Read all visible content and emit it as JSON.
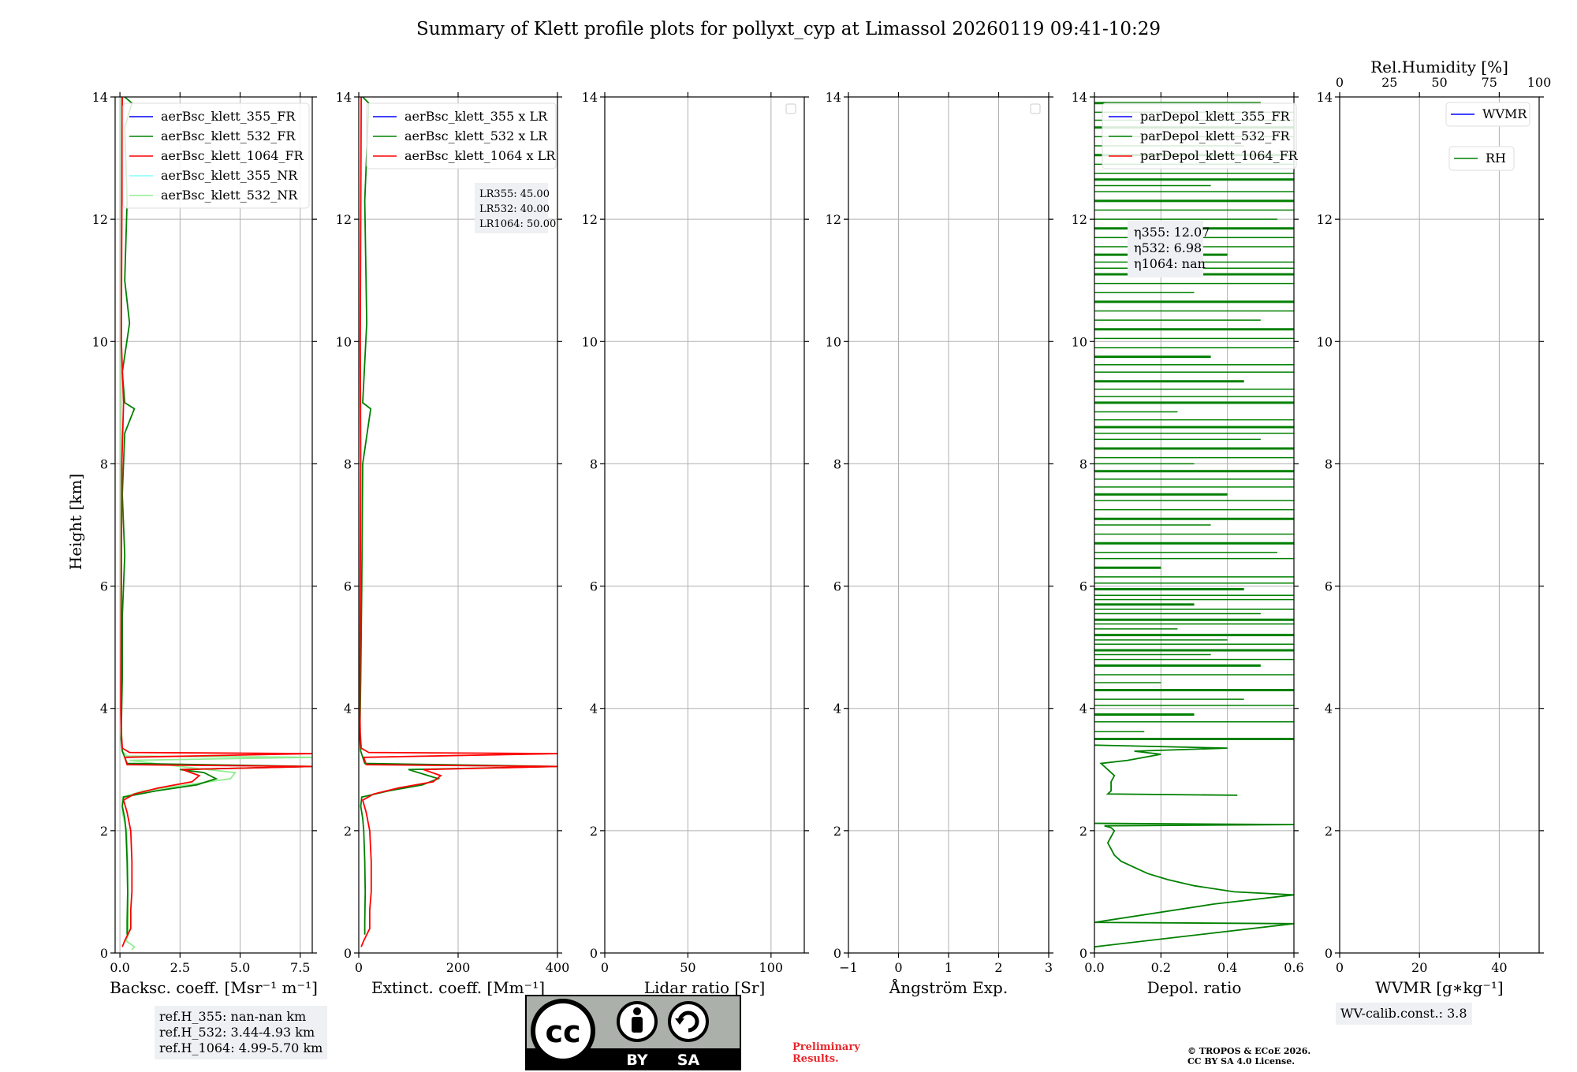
{
  "figure": {
    "title": "Summary of Klett profile plots for pollyxt_cyp at Limassol 20260119 09:41-10:29",
    "ylabel": "Height [km]",
    "ref_heights": [
      "ref.H_355: nan-nan km",
      "ref.H_532: 3.44-4.93 km",
      "ref.H_1064: 4.99-5.70 km"
    ],
    "wv_calib": "WV-calib.const.: 3.8",
    "preliminary": [
      "Preliminary",
      "Results."
    ],
    "copyright": [
      "© TROPOS & ECoE 2026.",
      "CC BY SA 4.0 License."
    ],
    "license_badge": {
      "by": "BY",
      "sa": "SA",
      "cc": "cc"
    },
    "colors": {
      "blue": "#0000ff",
      "green": "#008000",
      "red": "#ff0000",
      "cyan": "#80ffff",
      "lightgreen": "#90ee90"
    }
  },
  "chart_data": [
    {
      "type": "line",
      "id": "backscatter",
      "xlabel": "Backsc. coeff. [Msr⁻¹ m⁻¹]",
      "ylabel": "Height [km]",
      "xlim": [
        -0.2,
        8.0
      ],
      "ylim": [
        0,
        14
      ],
      "xticks": [
        "0.0",
        "2.5",
        "5.0",
        "7.5"
      ],
      "xtick_values": [
        0,
        2.5,
        5.0,
        7.5
      ],
      "yticks": [
        "0",
        "2",
        "4",
        "6",
        "8",
        "10",
        "12",
        "14"
      ],
      "legend": [
        "aerBsc_klett_355_FR",
        "aerBsc_klett_532_FR",
        "aerBsc_klett_1064_FR",
        "aerBsc_klett_355_NR",
        "aerBsc_klett_532_NR"
      ],
      "series": [
        {
          "name": "aerBsc_klett_532_NR",
          "color": "#90ee90",
          "y": [
            0.05,
            0.1,
            0.2,
            0.3,
            0.5,
            1.0,
            1.5,
            2.0,
            2.3,
            2.55,
            2.65,
            2.75,
            2.85,
            2.95,
            3.05,
            3.15,
            3.2,
            3.22,
            3.3,
            3.5,
            4,
            6,
            8,
            10,
            12,
            14
          ],
          "x": [
            0.5,
            0.6,
            0.25,
            0.35,
            0.35,
            0.33,
            0.32,
            0.28,
            0.1,
            0.1,
            1.0,
            2.8,
            4.6,
            4.8,
            2.5,
            0.4,
            8.0,
            0.3,
            0.1,
            0.08,
            0.05,
            0.04,
            0.05,
            0.05,
            0.06,
            0.06
          ]
        },
        {
          "name": "aerBsc_klett_532_FR",
          "color": "#008000",
          "y": [
            0.3,
            0.5,
            1.0,
            1.5,
            2.0,
            2.2,
            2.4,
            2.55,
            2.65,
            2.75,
            2.85,
            2.95,
            3.0,
            3.05,
            3.1,
            3.3,
            3.5,
            4.5,
            5.5,
            6.5,
            7.5,
            8.5,
            8.9,
            9.0,
            9.5,
            10.3,
            11,
            12.3,
            13.5,
            13.9,
            14
          ],
          "x": [
            0.3,
            0.3,
            0.32,
            0.3,
            0.25,
            0.2,
            0.1,
            0.15,
            1.5,
            3.2,
            4.0,
            3.5,
            2.5,
            8.0,
            0.3,
            0.1,
            0.05,
            0.1,
            0.1,
            0.2,
            0.1,
            0.2,
            0.6,
            0.2,
            0.1,
            0.4,
            0.2,
            0.3,
            0.2,
            0.5,
            0.2
          ]
        },
        {
          "name": "aerBsc_klett_1064_FR",
          "color": "#ff0000",
          "y": [
            0.1,
            0.2,
            0.4,
            0.7,
            1.0,
            1.5,
            2.0,
            2.3,
            2.5,
            2.6,
            2.7,
            2.8,
            2.9,
            3.0,
            3.05,
            3.08,
            3.2,
            3.26,
            3.28,
            3.35,
            3.6,
            4,
            6,
            8,
            9,
            10,
            12,
            14
          ],
          "x": [
            0.1,
            0.2,
            0.45,
            0.45,
            0.5,
            0.5,
            0.45,
            0.3,
            0.15,
            0.6,
            1.6,
            3.0,
            3.3,
            2.6,
            8.0,
            0.3,
            0.2,
            8.0,
            0.4,
            0.1,
            0.06,
            0.04,
            0.06,
            0.08,
            0.15,
            0.06,
            0.08,
            0.1
          ]
        }
      ]
    },
    {
      "type": "line",
      "id": "extinction",
      "xlabel": "Extinct. coeff. [Mm⁻¹]",
      "ylabel": "Height [km]",
      "xlim": [
        0,
        400
      ],
      "ylim": [
        0,
        14
      ],
      "xticks": [
        "0",
        "200",
        "400"
      ],
      "xtick_values": [
        0,
        200,
        400
      ],
      "yticks": [
        "0",
        "2",
        "4",
        "6",
        "8",
        "10",
        "12",
        "14"
      ],
      "legend": [
        "aerBsc_klett_355 x LR",
        "aerBsc_klett_532 x LR",
        "aerBsc_klett_1064 x LR"
      ],
      "lidar_ratio_text": [
        "LR355: 45.00",
        "LR532: 40.00",
        "LR1064: 50.00"
      ],
      "series": [
        {
          "name": "aerBsc_klett_532 x LR",
          "color": "#008000",
          "y": [
            0.3,
            0.5,
            1.0,
            1.5,
            2.0,
            2.2,
            2.4,
            2.55,
            2.65,
            2.75,
            2.85,
            3.0,
            3.05,
            3.1,
            3.3,
            3.5,
            4.5,
            6,
            8,
            8.9,
            9.0,
            10.3,
            12.3,
            13.9,
            14
          ],
          "x": [
            12,
            12,
            13,
            12,
            10,
            8,
            4,
            6,
            60,
            128,
            160,
            100,
            400,
            12,
            4,
            2,
            4,
            6,
            8,
            24,
            8,
            16,
            12,
            20,
            8
          ]
        },
        {
          "name": "aerBsc_klett_1064 x LR",
          "color": "#ff0000",
          "y": [
            0.1,
            0.2,
            0.4,
            0.7,
            1.0,
            1.5,
            2.0,
            2.3,
            2.5,
            2.6,
            2.7,
            2.8,
            2.9,
            3.0,
            3.05,
            3.08,
            3.2,
            3.26,
            3.28,
            3.35,
            3.6,
            4,
            6,
            8,
            10,
            12,
            14
          ],
          "x": [
            5,
            10,
            22,
            22,
            25,
            25,
            22,
            15,
            8,
            30,
            80,
            150,
            165,
            130,
            400,
            15,
            10,
            400,
            20,
            5,
            3,
            2,
            3,
            4,
            3,
            4,
            5
          ]
        }
      ]
    },
    {
      "type": "line",
      "id": "lidar_ratio",
      "xlabel": "Lidar ratio [Sr]",
      "xlim": [
        0,
        120
      ],
      "ylim": [
        0,
        14
      ],
      "xticks": [
        "0",
        "50",
        "100"
      ],
      "xtick_values": [
        0,
        50,
        100
      ],
      "yticks": [
        "0",
        "2",
        "4",
        "6",
        "8",
        "10",
        "12",
        "14"
      ],
      "series": []
    },
    {
      "type": "line",
      "id": "angstrom",
      "xlabel": "Ångström Exp.",
      "xlim": [
        -1,
        3
      ],
      "ylim": [
        0,
        14
      ],
      "xticks": [
        "−1",
        "0",
        "1",
        "2",
        "3"
      ],
      "xtick_values": [
        -1,
        0,
        1,
        2,
        3
      ],
      "yticks": [
        "0",
        "2",
        "4",
        "6",
        "8",
        "10",
        "12",
        "14"
      ],
      "series": []
    },
    {
      "type": "line",
      "id": "depol",
      "xlabel": "Depol. ratio",
      "xlim": [
        0,
        0.6
      ],
      "ylim": [
        0,
        14
      ],
      "xticks": [
        "0.0",
        "0.2",
        "0.4",
        "0.6"
      ],
      "xtick_values": [
        0,
        0.2,
        0.4,
        0.6
      ],
      "yticks": [
        "0",
        "2",
        "4",
        "6",
        "8",
        "10",
        "12",
        "14"
      ],
      "legend": [
        "parDepol_klett_355_FR",
        "parDepol_klett_532_FR",
        "parDepol_klett_1064_FR"
      ],
      "eta_text": [
        "η355: 12.07",
        "η532: 6.98",
        "η1064: nan"
      ],
      "series": [
        {
          "name": "parDepol_klett_532_FR",
          "color": "#008000",
          "y": [
            0.05,
            0.1,
            0.48,
            0.5,
            0.8,
            0.95,
            1.0,
            1.1,
            1.2,
            1.3,
            1.4,
            1.5,
            1.6,
            1.7,
            1.8,
            1.9,
            2.0,
            2.05,
            2.08,
            2.1,
            2.12
          ],
          "x": [
            0.0,
            0.0,
            0.6,
            0.0,
            0.36,
            0.6,
            0.42,
            0.3,
            0.22,
            0.16,
            0.12,
            0.08,
            0.06,
            0.05,
            0.04,
            0.05,
            0.06,
            0.05,
            0.03,
            0.6,
            0.0
          ]
        },
        {
          "name": "parDepol_klett_532_FR",
          "color": "#008000",
          "y": [
            2.58,
            2.6,
            2.65,
            2.8,
            2.9,
            3.0,
            3.1,
            3.15,
            3.2,
            3.25,
            3.3,
            3.35,
            3.4
          ],
          "x": [
            0.43,
            0.04,
            0.05,
            0.05,
            0.06,
            0.04,
            0.02,
            0.1,
            0.15,
            0.2,
            0.12,
            0.4,
            0.0
          ]
        }
      ],
      "noise_levels_km": [
        3.5,
        3.62,
        3.78,
        3.9,
        4.05,
        4.15,
        4.3,
        4.42,
        4.55,
        4.7,
        4.8,
        4.88,
        4.95,
        5.05,
        5.12,
        5.2,
        5.3,
        5.38,
        5.45,
        5.55,
        5.62,
        5.7,
        5.78,
        5.85,
        5.95,
        6.05,
        6.15,
        6.3,
        6.45,
        6.55,
        6.7,
        6.85,
        7.0,
        7.1,
        7.25,
        7.4,
        7.5,
        7.62,
        7.75,
        7.88,
        8.0,
        8.1,
        8.25,
        8.4,
        8.5,
        8.6,
        8.72,
        8.85,
        9.0,
        9.1,
        9.22,
        9.35,
        9.5,
        9.62,
        9.75,
        9.9,
        10.05,
        10.2,
        10.35,
        10.5,
        10.65,
        10.8,
        10.95,
        11.1,
        11.2,
        11.3,
        11.42,
        11.55,
        11.7,
        11.85,
        12.0,
        12.15,
        12.3,
        12.45,
        12.55,
        12.65,
        12.75,
        12.9,
        13.05,
        13.2,
        13.35,
        13.5,
        13.62,
        13.75,
        13.9
      ],
      "noise_lengths": [
        0.6,
        0.15,
        0.6,
        0.3,
        0.6,
        0.45,
        0.6,
        0.2,
        0.6,
        0.5,
        0.6,
        0.35,
        0.6,
        0.6,
        0.4,
        0.6,
        0.25,
        0.6,
        0.6,
        0.5,
        0.6,
        0.3,
        0.6,
        0.6,
        0.45,
        0.6,
        0.6,
        0.2,
        0.6,
        0.55,
        0.6,
        0.6,
        0.35,
        0.6,
        0.6,
        0.6,
        0.4,
        0.6,
        0.6,
        0.6,
        0.3,
        0.6,
        0.6,
        0.5,
        0.6,
        0.6,
        0.6,
        0.25,
        0.6,
        0.6,
        0.6,
        0.45,
        0.6,
        0.6,
        0.35,
        0.6,
        0.6,
        0.6,
        0.5,
        0.6,
        0.6,
        0.3,
        0.6,
        0.6,
        0.6,
        0.6,
        0.4,
        0.6,
        0.6,
        0.6,
        0.55,
        0.6,
        0.6,
        0.6,
        0.35,
        0.6,
        0.6,
        0.6,
        0.6,
        0.45,
        0.6,
        0.6,
        0.6,
        0.6,
        0.5
      ]
    },
    {
      "type": "line",
      "id": "wvmr",
      "xlabel": "WVMR [g∗kg⁻¹]",
      "xlim": [
        0,
        50
      ],
      "ylim": [
        0,
        14
      ],
      "xticks": [
        "0",
        "20",
        "40"
      ],
      "xtick_values": [
        0,
        20,
        40
      ],
      "yticks": [
        "0",
        "2",
        "4",
        "6",
        "8",
        "10",
        "12",
        "14"
      ],
      "top_axis": {
        "label": "Rel.Humidity [%]",
        "xlim": [
          0,
          100
        ],
        "ticks": [
          "0",
          "25",
          "50",
          "75",
          "100"
        ],
        "tick_values": [
          0,
          25,
          50,
          75,
          100
        ]
      },
      "legend": [
        "WVMR",
        "RH"
      ],
      "series": []
    }
  ]
}
